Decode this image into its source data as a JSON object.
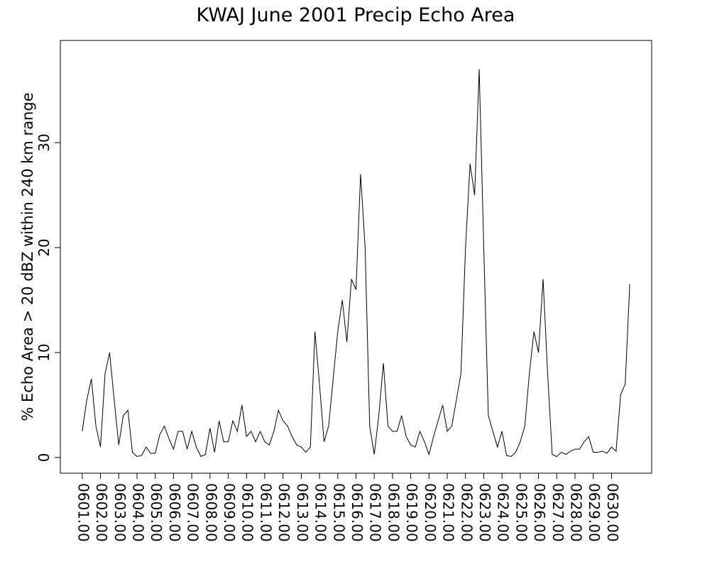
{
  "chart_data": {
    "type": "line",
    "title": "KWAJ June 2001 Precip Echo Area",
    "y_label": "% Echo Area > 20 dBZ within 240 km range",
    "color": "#000000",
    "x": [
      601,
      601.25,
      601.5,
      601.75,
      602,
      602.25,
      602.5,
      602.75,
      603,
      603.25,
      603.5,
      603.75,
      604,
      604.25,
      604.5,
      604.75,
      605,
      605.25,
      605.5,
      605.75,
      606,
      606.25,
      606.5,
      606.75,
      607,
      607.25,
      607.5,
      607.75,
      608,
      608.25,
      608.5,
      608.75,
      609,
      609.25,
      609.5,
      609.75,
      610,
      610.25,
      610.5,
      610.75,
      611,
      611.25,
      611.5,
      611.75,
      612,
      612.25,
      612.5,
      612.75,
      613,
      613.25,
      613.5,
      613.75,
      614,
      614.25,
      614.5,
      614.75,
      615,
      615.25,
      615.5,
      615.75,
      616,
      616.25,
      616.5,
      616.75,
      617,
      617.25,
      617.5,
      617.75,
      618,
      618.25,
      618.5,
      618.75,
      619,
      619.25,
      619.5,
      619.75,
      620,
      620.25,
      620.5,
      620.75,
      621,
      621.25,
      621.5,
      621.75,
      622,
      622.25,
      622.5,
      622.75,
      623,
      623.25,
      623.5,
      623.75,
      624,
      624.25,
      624.5,
      624.75,
      625,
      625.25,
      625.5,
      625.75,
      626,
      626.25,
      626.5,
      626.75,
      627,
      627.25,
      627.5,
      627.75,
      628,
      628.25,
      628.5,
      628.75,
      629,
      629.25,
      629.5,
      629.75,
      630,
      630.25,
      630.5,
      630.75,
      631
    ],
    "values": [
      2.5,
      5.5,
      7.5,
      3,
      1,
      8,
      10,
      5.5,
      1.2,
      4,
      4.5,
      0.5,
      0.1,
      0.2,
      1.0,
      0.4,
      0.4,
      2.2,
      3.0,
      1.8,
      0.8,
      2.5,
      2.5,
      0.8,
      2.5,
      1.0,
      0.1,
      0.3,
      2.8,
      0.5,
      3.5,
      1.5,
      1.5,
      3.5,
      2.5,
      5.0,
      2.0,
      2.5,
      1.5,
      2.5,
      1.5,
      1.2,
      2.5,
      4.5,
      3.5,
      3.0,
      2.0,
      1.2,
      1.0,
      0.5,
      1.0,
      12,
      7,
      1.5,
      3,
      7.5,
      12,
      15,
      11,
      17,
      16,
      27,
      20,
      3,
      0.3,
      4,
      9,
      3,
      2.5,
      2.5,
      4,
      2,
      1.2,
      1.0,
      2.5,
      1.5,
      0.3,
      2.0,
      3.5,
      5.0,
      2.5,
      3.0,
      5.5,
      8,
      20,
      28,
      25,
      37,
      20,
      4,
      2.5,
      1.0,
      2.5,
      0.2,
      0.1,
      0.5,
      1.5,
      3,
      8,
      12,
      10,
      17,
      8,
      0.3,
      0.1,
      0.5,
      0.3,
      0.6,
      0.8,
      0.8,
      1.5,
      2.0,
      0.5,
      0.5,
      0.6,
      0.4,
      1.0,
      0.6,
      6,
      7,
      16.5
    ],
    "xlim": [
      599.8,
      632.2
    ],
    "xticks": [
      {
        "value": 601,
        "label": "0601.00"
      },
      {
        "value": 602,
        "label": "0602.00"
      },
      {
        "value": 603,
        "label": "0603.00"
      },
      {
        "value": 604,
        "label": "0604.00"
      },
      {
        "value": 605,
        "label": "0605.00"
      },
      {
        "value": 606,
        "label": "0606.00"
      },
      {
        "value": 607,
        "label": "0607.00"
      },
      {
        "value": 608,
        "label": "0608.00"
      },
      {
        "value": 609,
        "label": "0609.00"
      },
      {
        "value": 610,
        "label": "0610.00"
      },
      {
        "value": 611,
        "label": "0611.00"
      },
      {
        "value": 612,
        "label": "0612.00"
      },
      {
        "value": 613,
        "label": "0613.00"
      },
      {
        "value": 614,
        "label": "0614.00"
      },
      {
        "value": 615,
        "label": "0615.00"
      },
      {
        "value": 616,
        "label": "0616.00"
      },
      {
        "value": 617,
        "label": "0617.00"
      },
      {
        "value": 618,
        "label": "0618.00"
      },
      {
        "value": 619,
        "label": "0619.00"
      },
      {
        "value": 620,
        "label": "0620.00"
      },
      {
        "value": 621,
        "label": "0621.00"
      },
      {
        "value": 622,
        "label": "0622.00"
      },
      {
        "value": 623,
        "label": "0623.00"
      },
      {
        "value": 624,
        "label": "0624.00"
      },
      {
        "value": 625,
        "label": "0625.00"
      },
      {
        "value": 626,
        "label": "0626.00"
      },
      {
        "value": 627,
        "label": "0627.00"
      },
      {
        "value": 628,
        "label": "0628.00"
      },
      {
        "value": 629,
        "label": "0629.00"
      },
      {
        "value": 630,
        "label": "0630.00"
      }
    ],
    "ylim": [
      -1.49,
      39.73
    ],
    "yticks": [
      0,
      10,
      20,
      30
    ],
    "grid": false
  }
}
